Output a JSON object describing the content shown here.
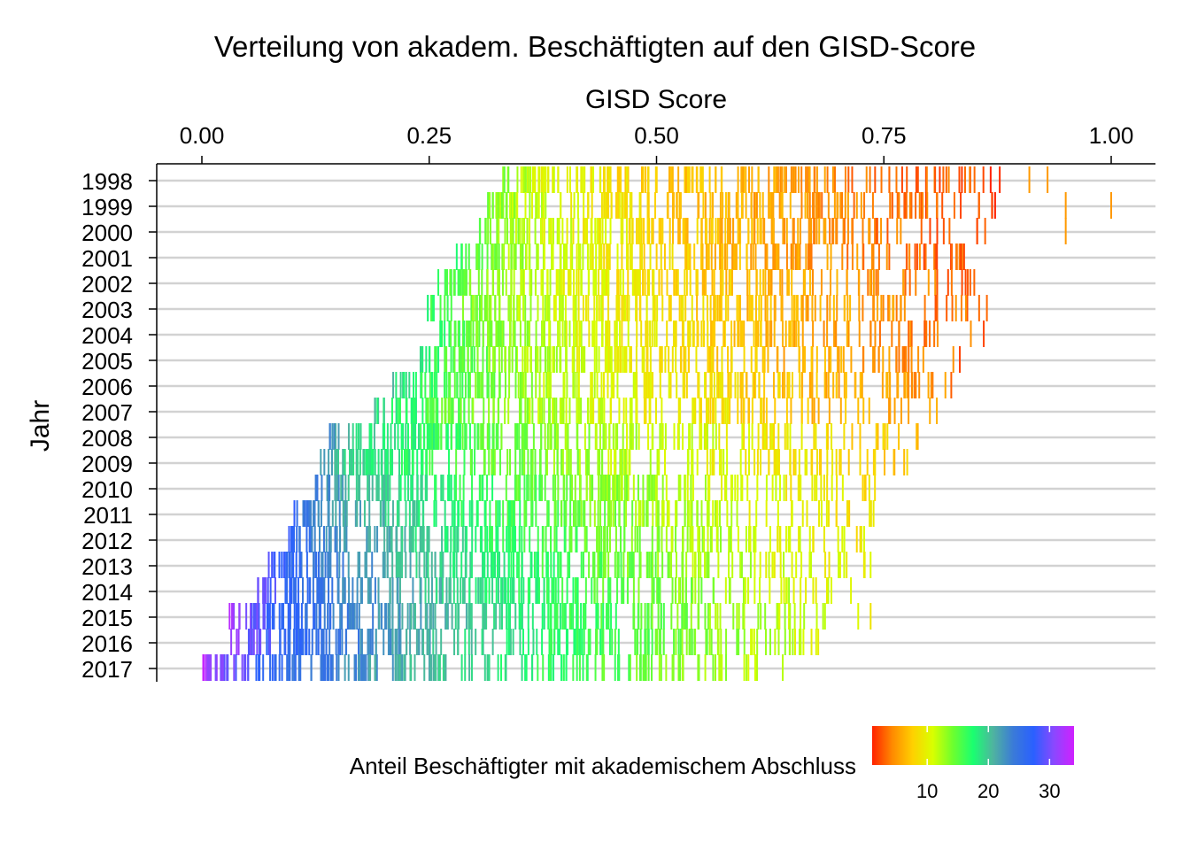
{
  "chart_data": {
    "type": "heatmap",
    "title": "Verteilung von akadem. Beschäftigten auf den GISD-Score",
    "xlabel": "GISD Score",
    "ylabel": "Jahr",
    "x_axis_position": "top",
    "xlim": [
      -0.05,
      1.05
    ],
    "x_ticks": [
      0.0,
      0.25,
      0.5,
      0.75,
      1.0
    ],
    "x_tick_labels": [
      "0.00",
      "0.25",
      "0.50",
      "0.75",
      "1.00"
    ],
    "y_categories": [
      "1998",
      "1999",
      "2000",
      "2001",
      "2002",
      "2003",
      "2004",
      "2005",
      "2006",
      "2007",
      "2008",
      "2009",
      "2010",
      "2011",
      "2012",
      "2013",
      "2014",
      "2015",
      "2016",
      "2017"
    ],
    "grid": true,
    "legend": {
      "title": "Anteil Beschäftigter mit akademischem Abschluss",
      "placement": "bottom",
      "range": [
        1,
        34
      ],
      "ticks": [
        10,
        20,
        30
      ],
      "colors": [
        "#ff2200",
        "#ff8a00",
        "#ffd000",
        "#d9ff00",
        "#6dff2e",
        "#1aff70",
        "#4fb3a0",
        "#3a7ad8",
        "#2a60ff",
        "#8a48ff",
        "#d020ff"
      ]
    },
    "series": [
      {
        "year": "1998",
        "gisd_min": 0.33,
        "gisd_max": 0.89,
        "pct_at_min": 14,
        "pct_at_max": 2,
        "outliers": [
          {
            "x": 0.91,
            "pct": 5
          },
          {
            "x": 0.93,
            "pct": 5
          }
        ]
      },
      {
        "year": "1999",
        "gisd_min": 0.31,
        "gisd_max": 0.88,
        "pct_at_min": 15,
        "pct_at_max": 2,
        "outliers": [
          {
            "x": 0.95,
            "pct": 5
          },
          {
            "x": 1.0,
            "pct": 5
          }
        ]
      },
      {
        "year": "2000",
        "gisd_min": 0.3,
        "gisd_max": 0.87,
        "pct_at_min": 16,
        "pct_at_max": 2,
        "outliers": [
          {
            "x": 0.95,
            "pct": 5
          }
        ]
      },
      {
        "year": "2001",
        "gisd_min": 0.28,
        "gisd_max": 0.87,
        "pct_at_min": 17,
        "pct_at_max": 2,
        "outliers": []
      },
      {
        "year": "2002",
        "gisd_min": 0.26,
        "gisd_max": 0.86,
        "pct_at_min": 17,
        "pct_at_max": 3,
        "outliers": []
      },
      {
        "year": "2003",
        "gisd_min": 0.24,
        "gisd_max": 0.87,
        "pct_at_min": 18,
        "pct_at_max": 3,
        "outliers": []
      },
      {
        "year": "2004",
        "gisd_min": 0.26,
        "gisd_max": 0.86,
        "pct_at_min": 18,
        "pct_at_max": 3,
        "outliers": []
      },
      {
        "year": "2005",
        "gisd_min": 0.24,
        "gisd_max": 0.86,
        "pct_at_min": 19,
        "pct_at_max": 3,
        "outliers": []
      },
      {
        "year": "2006",
        "gisd_min": 0.21,
        "gisd_max": 0.85,
        "pct_at_min": 20,
        "pct_at_max": 4,
        "outliers": []
      },
      {
        "year": "2007",
        "gisd_min": 0.19,
        "gisd_max": 0.81,
        "pct_at_min": 20,
        "pct_at_max": 5,
        "outliers": []
      },
      {
        "year": "2008",
        "gisd_min": 0.14,
        "gisd_max": 0.79,
        "pct_at_min": 23,
        "pct_at_max": 7,
        "outliers": []
      },
      {
        "year": "2009",
        "gisd_min": 0.13,
        "gisd_max": 0.78,
        "pct_at_min": 23,
        "pct_at_max": 7,
        "outliers": []
      },
      {
        "year": "2010",
        "gisd_min": 0.12,
        "gisd_max": 0.77,
        "pct_at_min": 25,
        "pct_at_max": 8,
        "outliers": []
      },
      {
        "year": "2011",
        "gisd_min": 0.1,
        "gisd_max": 0.76,
        "pct_at_min": 27,
        "pct_at_max": 8,
        "outliers": []
      },
      {
        "year": "2012",
        "gisd_min": 0.09,
        "gisd_max": 0.74,
        "pct_at_min": 28,
        "pct_at_max": 9,
        "outliers": []
      },
      {
        "year": "2013",
        "gisd_min": 0.07,
        "gisd_max": 0.75,
        "pct_at_min": 30,
        "pct_at_max": 9,
        "outliers": []
      },
      {
        "year": "2014",
        "gisd_min": 0.06,
        "gisd_max": 0.72,
        "pct_at_min": 31,
        "pct_at_max": 10,
        "outliers": []
      },
      {
        "year": "2015",
        "gisd_min": 0.03,
        "gisd_max": 0.74,
        "pct_at_min": 33,
        "pct_at_max": 10,
        "outliers": []
      },
      {
        "year": "2016",
        "gisd_min": 0.03,
        "gisd_max": 0.68,
        "pct_at_min": 33,
        "pct_at_max": 11,
        "outliers": []
      },
      {
        "year": "2017",
        "gisd_min": 0.0,
        "gisd_max": 0.65,
        "pct_at_min": 34,
        "pct_at_max": 11,
        "outliers": []
      }
    ]
  }
}
